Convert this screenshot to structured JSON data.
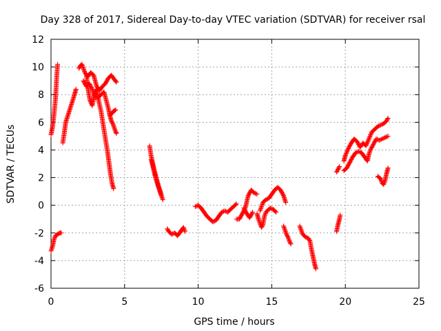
{
  "chart_data": {
    "type": "scatter",
    "title": "Day 328 of 2017, Sidereal Day-to-day VTEC variation (SDTVAR) for receiver rsal",
    "xlabel": "GPS time / hours",
    "ylabel": "SDTVAR / TECUs",
    "xlim": [
      0,
      25
    ],
    "ylim": [
      -6,
      12
    ],
    "xticks": [
      0,
      5,
      10,
      15,
      20,
      25
    ],
    "yticks": [
      -6,
      -4,
      -2,
      0,
      2,
      4,
      6,
      8,
      10,
      12
    ],
    "grid": true,
    "marker": "+",
    "colors": {
      "marker": "#ff0000",
      "grid": "#a0a0a0",
      "axis": "#000000"
    },
    "series": [
      {
        "name": "SDTVAR",
        "segments": [
          [
            [
              0.0,
              -3.3
            ],
            [
              0.1,
              -3.0
            ],
            [
              0.2,
              -2.5
            ],
            [
              0.3,
              -2.2
            ],
            [
              0.45,
              -2.1
            ],
            [
              0.6,
              -2.0
            ],
            [
              0.7,
              -2.0
            ]
          ],
          [
            [
              0.0,
              5.1
            ],
            [
              0.1,
              5.6
            ],
            [
              0.2,
              6.5
            ],
            [
              0.3,
              7.6
            ],
            [
              0.35,
              8.5
            ],
            [
              0.4,
              9.5
            ],
            [
              0.45,
              10.2
            ]
          ],
          [
            [
              0.8,
              4.5
            ],
            [
              0.9,
              5.2
            ],
            [
              1.0,
              6.0
            ],
            [
              1.15,
              6.5
            ],
            [
              1.3,
              7.0
            ],
            [
              1.45,
              7.5
            ],
            [
              1.6,
              8.0
            ],
            [
              1.7,
              8.4
            ]
          ],
          [
            [
              1.9,
              9.9
            ],
            [
              2.0,
              10.1
            ],
            [
              2.1,
              10.2
            ],
            [
              2.2,
              9.9
            ],
            [
              2.3,
              9.6
            ],
            [
              2.5,
              9.3
            ],
            [
              2.7,
              9.6
            ],
            [
              2.9,
              9.4
            ],
            [
              3.1,
              8.6
            ],
            [
              3.3,
              8.3
            ],
            [
              3.5,
              8.6
            ],
            [
              3.7,
              8.8
            ],
            [
              3.9,
              9.2
            ],
            [
              4.1,
              9.4
            ],
            [
              4.3,
              9.1
            ],
            [
              4.45,
              8.9
            ]
          ],
          [
            [
              2.4,
              9.5
            ],
            [
              2.5,
              8.5
            ],
            [
              2.65,
              7.6
            ],
            [
              2.8,
              7.2
            ],
            [
              2.95,
              8.0
            ],
            [
              3.1,
              8.4
            ],
            [
              3.25,
              7.5
            ],
            [
              3.4,
              6.8
            ],
            [
              3.55,
              5.8
            ],
            [
              3.7,
              4.8
            ],
            [
              3.85,
              3.8
            ],
            [
              3.95,
              3.0
            ],
            [
              4.05,
              2.2
            ],
            [
              4.15,
              1.6
            ],
            [
              4.25,
              1.2
            ]
          ],
          [
            [
              2.2,
              9.0
            ],
            [
              2.4,
              8.6
            ],
            [
              2.6,
              8.8
            ],
            [
              2.8,
              8.4
            ],
            [
              3.0,
              7.8
            ],
            [
              3.2,
              7.8
            ],
            [
              3.4,
              8.0
            ],
            [
              3.6,
              8.2
            ],
            [
              3.75,
              7.6
            ],
            [
              3.9,
              7.0
            ],
            [
              4.0,
              6.5
            ],
            [
              4.1,
              6.6
            ],
            [
              4.25,
              6.8
            ],
            [
              4.4,
              6.9
            ]
          ],
          [
            [
              4.0,
              6.5
            ],
            [
              4.1,
              6.1
            ],
            [
              4.2,
              5.9
            ],
            [
              4.3,
              5.6
            ],
            [
              4.4,
              5.3
            ],
            [
              4.45,
              5.2
            ]
          ],
          [
            [
              6.7,
              4.3
            ],
            [
              6.8,
              3.6
            ],
            [
              6.9,
              3.1
            ],
            [
              7.0,
              2.6
            ],
            [
              7.1,
              2.2
            ],
            [
              7.2,
              1.8
            ],
            [
              7.3,
              1.4
            ],
            [
              7.4,
              1.1
            ],
            [
              7.5,
              0.7
            ],
            [
              7.6,
              0.4
            ]
          ],
          [
            [
              6.8,
              3.3
            ],
            [
              6.95,
              2.7
            ],
            [
              7.1,
              2.0
            ],
            [
              7.25,
              1.5
            ],
            [
              7.4,
              1.0
            ],
            [
              7.5,
              0.7
            ]
          ],
          [
            [
              7.9,
              -1.7
            ],
            [
              8.0,
              -1.9
            ],
            [
              8.2,
              -2.1
            ],
            [
              8.4,
              -2.0
            ],
            [
              8.6,
              -2.2
            ],
            [
              8.8,
              -1.9
            ],
            [
              9.0,
              -1.6
            ],
            [
              9.1,
              -1.9
            ]
          ],
          [
            [
              9.8,
              -0.1
            ],
            [
              10.0,
              0.0
            ],
            [
              10.2,
              -0.2
            ],
            [
              10.4,
              -0.5
            ],
            [
              10.6,
              -0.8
            ],
            [
              10.8,
              -1.0
            ],
            [
              11.0,
              -1.2
            ],
            [
              11.2,
              -1.1
            ],
            [
              11.4,
              -0.8
            ],
            [
              11.6,
              -0.5
            ],
            [
              11.8,
              -0.4
            ],
            [
              12.0,
              -0.5
            ],
            [
              12.2,
              -0.3
            ],
            [
              12.4,
              -0.1
            ],
            [
              12.6,
              0.1
            ]
          ],
          [
            [
              12.6,
              -1.0
            ],
            [
              12.8,
              -1.0
            ],
            [
              13.0,
              -0.6
            ],
            [
              13.2,
              -0.2
            ],
            [
              13.4,
              0.7
            ],
            [
              13.5,
              0.9
            ],
            [
              13.6,
              1.1
            ],
            [
              13.8,
              0.9
            ],
            [
              14.0,
              0.8
            ]
          ],
          [
            [
              13.1,
              -0.2
            ],
            [
              13.3,
              -0.6
            ],
            [
              13.5,
              -0.9
            ],
            [
              13.7,
              -0.5
            ]
          ],
          [
            [
              14.0,
              -0.6
            ],
            [
              14.1,
              -1.0
            ],
            [
              14.2,
              -1.3
            ],
            [
              14.3,
              -1.6
            ],
            [
              14.4,
              -1.4
            ],
            [
              14.5,
              -0.8
            ],
            [
              14.6,
              -0.5
            ],
            [
              14.7,
              -0.4
            ],
            [
              14.9,
              -0.2
            ],
            [
              15.1,
              -0.3
            ],
            [
              15.3,
              -0.5
            ]
          ],
          [
            [
              14.2,
              -0.4
            ],
            [
              14.4,
              0.2
            ],
            [
              14.6,
              0.4
            ],
            [
              14.8,
              0.5
            ],
            [
              15.0,
              0.8
            ],
            [
              15.2,
              1.1
            ],
            [
              15.4,
              1.3
            ],
            [
              15.6,
              1.1
            ],
            [
              15.8,
              0.7
            ],
            [
              15.95,
              0.2
            ]
          ],
          [
            [
              15.8,
              -1.5
            ],
            [
              15.9,
              -1.8
            ],
            [
              16.0,
              -2.1
            ],
            [
              16.1,
              -2.3
            ],
            [
              16.2,
              -2.6
            ],
            [
              16.3,
              -2.8
            ]
          ],
          [
            [
              16.9,
              -1.5
            ],
            [
              17.0,
              -1.8
            ],
            [
              17.1,
              -2.1
            ],
            [
              17.3,
              -2.3
            ],
            [
              17.5,
              -2.4
            ],
            [
              17.6,
              -2.6
            ],
            [
              17.7,
              -3.2
            ],
            [
              17.8,
              -3.7
            ],
            [
              17.9,
              -4.2
            ],
            [
              18.0,
              -4.6
            ]
          ],
          [
            [
              19.4,
              -1.9
            ],
            [
              19.5,
              -1.4
            ],
            [
              19.6,
              -1.0
            ],
            [
              19.65,
              -0.7
            ]
          ],
          [
            [
              19.4,
              2.4
            ],
            [
              19.5,
              2.6
            ],
            [
              19.6,
              2.8
            ]
          ],
          [
            [
              19.9,
              2.5
            ],
            [
              20.1,
              2.7
            ],
            [
              20.3,
              3.1
            ],
            [
              20.5,
              3.5
            ],
            [
              20.7,
              3.8
            ],
            [
              20.9,
              3.9
            ],
            [
              21.1,
              3.8
            ],
            [
              21.3,
              3.5
            ],
            [
              21.5,
              3.2
            ],
            [
              21.6,
              3.7
            ],
            [
              21.7,
              4.0
            ],
            [
              21.9,
              4.4
            ],
            [
              22.1,
              4.8
            ],
            [
              22.3,
              4.7
            ],
            [
              22.5,
              4.8
            ],
            [
              22.7,
              4.9
            ],
            [
              22.9,
              5.0
            ]
          ],
          [
            [
              19.9,
              3.2
            ],
            [
              20.0,
              3.6
            ],
            [
              20.2,
              4.1
            ],
            [
              20.4,
              4.5
            ],
            [
              20.6,
              4.8
            ],
            [
              20.8,
              4.6
            ],
            [
              21.0,
              4.2
            ],
            [
              21.2,
              4.5
            ],
            [
              21.4,
              4.3
            ],
            [
              21.6,
              4.8
            ],
            [
              21.8,
              5.3
            ],
            [
              22.0,
              5.5
            ],
            [
              22.2,
              5.7
            ],
            [
              22.4,
              5.8
            ],
            [
              22.6,
              5.9
            ],
            [
              22.8,
              6.1
            ],
            [
              22.9,
              6.3
            ]
          ],
          [
            [
              22.2,
              2.1
            ],
            [
              22.4,
              1.9
            ],
            [
              22.5,
              1.6
            ],
            [
              22.6,
              1.5
            ],
            [
              22.7,
              1.8
            ],
            [
              22.8,
              2.3
            ],
            [
              22.9,
              2.7
            ]
          ]
        ]
      }
    ]
  }
}
